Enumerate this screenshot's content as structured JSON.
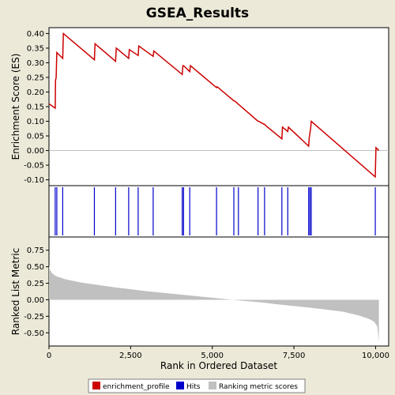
{
  "colors": {
    "background": "#ece9d8",
    "plot_background": "#ffffff",
    "enrichment_line": "#cc0000",
    "hits": "#0000cc",
    "ranking": "#c0c0c0",
    "text": "#000000"
  },
  "chart_data": {
    "type": "line",
    "title": "GSEA_Results",
    "xlabel": "Rank in Ordered Dataset",
    "xlim": [
      0,
      10400
    ],
    "x_ticks": [
      0,
      2500,
      5000,
      7500,
      10000
    ],
    "x_tick_labels": [
      "0",
      "2,500",
      "5,000",
      "7,500",
      "10,000"
    ],
    "legend_position": "bottom",
    "legend": [
      {
        "label": "enrichment_profile",
        "color": "#cc0000"
      },
      {
        "label": "Hits",
        "color": "#0000cc"
      },
      {
        "label": "Ranking metric scores",
        "color": "#c0c0c0"
      }
    ],
    "enrichment_profile": {
      "ylabel": "Enrichment Score (ES)",
      "ylim": [
        -0.12,
        0.42
      ],
      "y_ticks": [
        -0.1,
        -0.05,
        0.0,
        0.05,
        0.1,
        0.15,
        0.2,
        0.25,
        0.3,
        0.35,
        0.4
      ],
      "y_tick_labels": [
        "-0.10",
        "-0.05",
        "0.00",
        "0.05",
        "0.10",
        "0.15",
        "0.20",
        "0.25",
        "0.30",
        "0.35",
        "0.40"
      ],
      "x": [
        0,
        190,
        200,
        220,
        240,
        420,
        440,
        1390,
        1410,
        2040,
        2060,
        2440,
        2460,
        2730,
        2750,
        3190,
        3210,
        4080,
        4100,
        4120,
        4310,
        4330,
        5130,
        5150,
        5660,
        5680,
        6400,
        6420,
        6580,
        6600,
        6640,
        7130,
        7150,
        7310,
        7330,
        7950,
        7970,
        8010,
        8030,
        9990,
        10010,
        10100
      ],
      "y": [
        0.16,
        0.145,
        0.24,
        0.25,
        0.335,
        0.315,
        0.4,
        0.31,
        0.365,
        0.305,
        0.35,
        0.315,
        0.345,
        0.325,
        0.357,
        0.322,
        0.34,
        0.26,
        0.29,
        0.29,
        0.27,
        0.29,
        0.215,
        0.218,
        0.17,
        0.17,
        0.1,
        0.1,
        0.09,
        0.09,
        0.085,
        0.04,
        0.08,
        0.065,
        0.08,
        0.015,
        0.045,
        0.075,
        0.1,
        -0.09,
        0.01,
        0.0
      ]
    },
    "hits": {
      "positions": [
        190,
        240,
        420,
        1390,
        2040,
        2440,
        2730,
        3190,
        4080,
        4120,
        4310,
        5130,
        5660,
        5800,
        6400,
        6600,
        7130,
        7310,
        7950,
        7990,
        8030,
        9990
      ]
    },
    "ranking_metric": {
      "ylabel": "Ranked List Metric",
      "ylim": [
        -0.7,
        0.95
      ],
      "y_ticks": [
        -0.5,
        -0.25,
        0.0,
        0.25,
        0.5,
        0.75
      ],
      "y_tick_labels": [
        "-0.50",
        "-0.25",
        "0.00",
        "0.25",
        "0.50",
        "0.75"
      ],
      "x": [
        0,
        30,
        100,
        200,
        500,
        1000,
        2000,
        3000,
        4000,
        5000,
        5800,
        6500,
        7000,
        8000,
        9000,
        9500,
        9800,
        9950,
        10050,
        10100
      ],
      "y": [
        0.52,
        0.45,
        0.4,
        0.36,
        0.31,
        0.26,
        0.19,
        0.13,
        0.08,
        0.03,
        -0.01,
        -0.04,
        -0.07,
        -0.12,
        -0.18,
        -0.24,
        -0.29,
        -0.33,
        -0.4,
        -0.63
      ]
    }
  }
}
